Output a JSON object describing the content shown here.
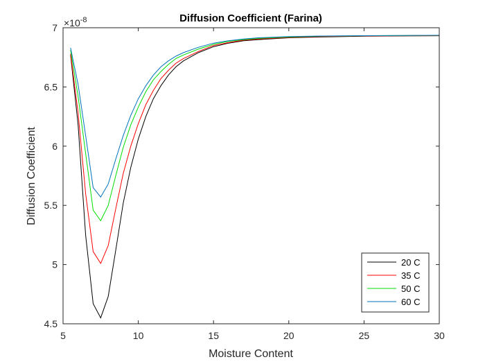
{
  "chart_data": {
    "type": "line",
    "title": "Diffusion Coefficient (Farina)",
    "xlabel": "Moisture Content",
    "ylabel": "Diffusion Coefficient",
    "y_exponent_label": "×10",
    "y_exponent_power": "-8",
    "xlim": [
      5,
      30
    ],
    "ylim": [
      4.5,
      7.0
    ],
    "x_ticks": [
      5,
      10,
      15,
      20,
      25,
      30
    ],
    "x_tick_labels": [
      "5",
      "10",
      "15",
      "20",
      "25",
      "30"
    ],
    "y_ticks": [
      4.5,
      5,
      5.5,
      6,
      6.5,
      7
    ],
    "y_tick_labels": [
      "4.5",
      "5",
      "5.5",
      "6",
      "6.5",
      "7"
    ],
    "grid": false,
    "legend_position": "bottom-right",
    "x": [
      5.5,
      6.0,
      6.5,
      7.0,
      7.5,
      8.0,
      8.5,
      9.0,
      9.5,
      10.0,
      10.5,
      11.0,
      11.5,
      12.0,
      12.5,
      13.0,
      14.0,
      15.0,
      16.0,
      17.0,
      18.0,
      20.0,
      22.0,
      25.0,
      28.0,
      30.0
    ],
    "series": [
      {
        "name": "20 C",
        "color": "#000000",
        "values": [
          6.77,
          6.18,
          5.25,
          4.67,
          4.55,
          4.73,
          5.12,
          5.52,
          5.82,
          6.06,
          6.25,
          6.4,
          6.51,
          6.6,
          6.67,
          6.72,
          6.79,
          6.84,
          6.87,
          6.89,
          6.9,
          6.915,
          6.922,
          6.928,
          6.931,
          6.932
        ]
      },
      {
        "name": "35 C",
        "color": "#ff0000",
        "values": [
          6.78,
          6.28,
          5.6,
          5.11,
          5.01,
          5.16,
          5.47,
          5.77,
          6.0,
          6.19,
          6.35,
          6.47,
          6.57,
          6.64,
          6.7,
          6.74,
          6.8,
          6.85,
          6.875,
          6.895,
          6.905,
          6.918,
          6.925,
          6.93,
          6.932,
          6.933
        ]
      },
      {
        "name": "50 C",
        "color": "#00dd00",
        "values": [
          6.81,
          6.42,
          5.94,
          5.46,
          5.37,
          5.5,
          5.75,
          5.99,
          6.18,
          6.33,
          6.46,
          6.56,
          6.63,
          6.69,
          6.74,
          6.77,
          6.82,
          6.86,
          6.885,
          6.9,
          6.91,
          6.922,
          6.928,
          6.932,
          6.934,
          6.935
        ]
      },
      {
        "name": "60 C",
        "color": "#0072bd",
        "values": [
          6.83,
          6.52,
          6.09,
          5.65,
          5.57,
          5.68,
          5.89,
          6.09,
          6.26,
          6.4,
          6.51,
          6.6,
          6.67,
          6.72,
          6.76,
          6.79,
          6.835,
          6.87,
          6.89,
          6.905,
          6.915,
          6.925,
          6.93,
          6.933,
          6.935,
          6.936
        ]
      }
    ]
  }
}
